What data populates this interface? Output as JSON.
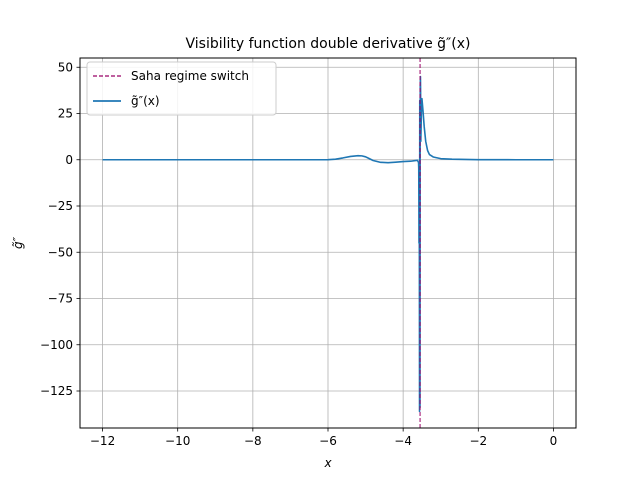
{
  "chart_data": {
    "type": "line",
    "title": "Visibility function double derivative g̃″(x)",
    "xlabel": "x",
    "ylabel": "g̃″",
    "xlim": [
      -12.6,
      0.6
    ],
    "ylim": [
      -145,
      55
    ],
    "xticks": [
      -12,
      -10,
      -8,
      -6,
      -4,
      -2,
      0
    ],
    "xtick_labels": [
      "−12",
      "−10",
      "−8",
      "−6",
      "−4",
      "−2",
      "0"
    ],
    "yticks": [
      50,
      25,
      0,
      -25,
      -50,
      -75,
      -100,
      -125
    ],
    "ytick_labels": [
      "50",
      "25",
      "0",
      "−25",
      "−50",
      "−75",
      "−100",
      "−125"
    ],
    "grid": true,
    "legend_position": "top-left",
    "vline": {
      "name": "Saha regime switch",
      "x": -3.55,
      "color": "#990066",
      "style": "dashed"
    },
    "series": [
      {
        "name": "g̃″(x)",
        "color": "#1f77b4",
        "x": [
          -12,
          -10,
          -8,
          -6.5,
          -6,
          -5.8,
          -5.6,
          -5.4,
          -5.2,
          -5.1,
          -5.0,
          -4.9,
          -4.8,
          -4.6,
          -4.4,
          -4.2,
          -4.0,
          -3.8,
          -3.7,
          -3.62,
          -3.59,
          -3.585,
          -3.582,
          -3.578,
          -3.575,
          -3.572,
          -3.568,
          -3.566,
          -3.564,
          -3.562,
          -3.56,
          -3.558,
          -3.556,
          -3.554,
          -3.552,
          -3.55,
          -3.548,
          -3.545,
          -3.54,
          -3.535,
          -3.53,
          -3.52,
          -3.51,
          -3.5,
          -3.47,
          -3.44,
          -3.4,
          -3.35,
          -3.3,
          -3.2,
          -3.0,
          -2.7,
          -2.0,
          -1,
          0
        ],
        "y": [
          0,
          0,
          0,
          0,
          0.05,
          0.3,
          1.0,
          1.8,
          2.2,
          2.1,
          1.6,
          0.6,
          -0.4,
          -1.4,
          -1.6,
          -1.3,
          -1.0,
          -0.8,
          -0.5,
          -0.3,
          -1.5,
          -5,
          -20,
          -45,
          -30,
          -10,
          -60,
          -100,
          -136,
          -131,
          -20,
          32,
          10,
          -80,
          -134,
          -70,
          10,
          40,
          45,
          35,
          10,
          20,
          32,
          33,
          26,
          18,
          10,
          5,
          2.8,
          1.5,
          0.6,
          0.3,
          0.05,
          0,
          0
        ]
      }
    ]
  }
}
